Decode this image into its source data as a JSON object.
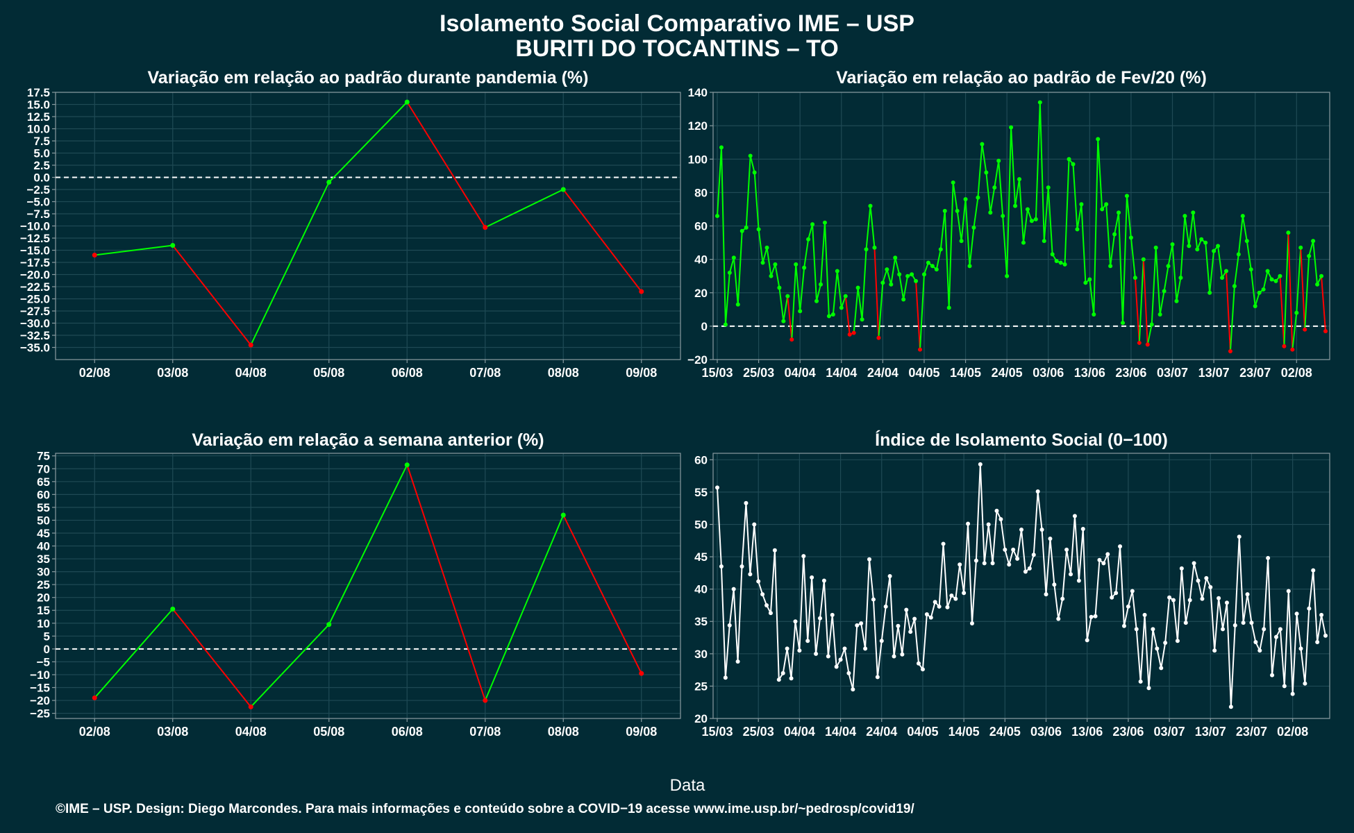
{
  "header": {
    "title1": "Isolamento Social Comparativo IME – USP",
    "title2": "BURITI DO TOCANTINS – TO"
  },
  "x_axis_caption": "Data",
  "footer": "©IME – USP. Design: Diego Marcondes. Para mais informações e conteúdo sobre a COVID−19 acesse www.ime.usp.br/~pedrosp/covid19/",
  "colors": {
    "background": "#022b35",
    "up": "#00ff00",
    "down": "#ff0000",
    "index": "#ffffff",
    "grid": "#1f4a55",
    "border": "#8a9ba0"
  },
  "chart_data": [
    {
      "id": "pandemia",
      "type": "line",
      "title": "Variação em relação ao padrão durante pandemia (%)",
      "categories": [
        "02/08",
        "03/08",
        "04/08",
        "05/08",
        "06/08",
        "07/08",
        "08/08",
        "09/08"
      ],
      "values": [
        -16.0,
        -14.0,
        -34.5,
        -1.0,
        15.5,
        -10.3,
        -2.5,
        -23.5
      ],
      "ylim": [
        -37.5,
        17.5
      ],
      "yticks": [
        17.5,
        15.0,
        12.5,
        10.0,
        7.5,
        5.0,
        2.5,
        0.0,
        -2.5,
        -5.0,
        -7.5,
        -10.0,
        -12.5,
        -15.0,
        -17.5,
        -20.0,
        -22.5,
        -25.0,
        -27.5,
        -30.0,
        -32.5,
        -35.0
      ],
      "ytick_labels": [
        "17.5",
        "15.0",
        "12.5",
        "10.0",
        "7.5",
        "5.0",
        "2.5",
        "0.0",
        "−2.5",
        "−5.0",
        "−7.5",
        "−10.0",
        "−12.5",
        "−15.0",
        "−17.5",
        "−20.0",
        "−22.5",
        "−25.0",
        "−27.5",
        "−30.0",
        "−32.5",
        "−35.0"
      ],
      "reference_line": 0,
      "grid": true
    },
    {
      "id": "fev20",
      "type": "line",
      "title": "Variação em relação ao padrão de Fev/20 (%)",
      "x_start": "15/03",
      "xtick_labels": [
        "15/03",
        "25/03",
        "04/04",
        "14/04",
        "24/04",
        "04/05",
        "14/05",
        "24/05",
        "03/06",
        "13/06",
        "23/06",
        "03/07",
        "13/07",
        "23/07",
        "02/08"
      ],
      "values": [
        66,
        107,
        1,
        32,
        41,
        13,
        57,
        59,
        102,
        92,
        58,
        38,
        47,
        30,
        37,
        23,
        3,
        18,
        -8,
        37,
        9,
        35,
        52,
        61,
        15,
        25,
        62,
        6,
        7,
        33,
        11,
        18,
        -5,
        -4,
        23,
        4,
        46,
        72,
        47,
        -7,
        26,
        34,
        25,
        41,
        31,
        16,
        30,
        31,
        27,
        -14,
        31,
        38,
        36,
        34,
        46,
        69,
        11,
        86,
        69,
        51,
        76,
        36,
        59,
        77,
        109,
        92,
        68,
        83,
        99,
        66,
        30,
        119,
        72,
        88,
        50,
        70,
        63,
        64,
        134,
        51,
        83,
        43,
        39,
        38,
        37,
        100,
        97,
        58,
        73,
        26,
        28,
        7,
        112,
        70,
        73,
        36,
        55,
        68,
        2,
        78,
        53,
        29,
        -10,
        40,
        -11,
        1,
        47,
        7,
        21,
        36,
        49,
        15,
        29,
        66,
        48,
        68,
        46,
        52,
        50,
        20,
        45,
        48,
        29,
        33,
        -15,
        24,
        43,
        66,
        51,
        34,
        12,
        20,
        22,
        33,
        28,
        27,
        30,
        -12,
        56,
        -14,
        8,
        47,
        -2,
        42,
        51,
        25,
        30,
        -3
      ],
      "ylim": [
        -20,
        140
      ],
      "yticks": [
        140,
        120,
        100,
        80,
        60,
        40,
        20,
        0,
        -20
      ],
      "ytick_labels": [
        "140",
        "120",
        "100",
        "80",
        "60",
        "40",
        "20",
        "0",
        "−20"
      ],
      "reference_line": 0,
      "grid": true
    },
    {
      "id": "semana",
      "type": "line",
      "title": "Variação em relação a semana anterior (%)",
      "categories": [
        "02/08",
        "03/08",
        "04/08",
        "05/08",
        "06/08",
        "07/08",
        "08/08",
        "09/08"
      ],
      "values": [
        -19.0,
        15.5,
        -22.5,
        9.5,
        71.5,
        -20.0,
        52.0,
        -9.5
      ],
      "ylim": [
        -27,
        76
      ],
      "yticks": [
        75,
        70,
        65,
        60,
        55,
        50,
        45,
        40,
        35,
        30,
        25,
        20,
        15,
        10,
        5,
        0,
        -5,
        -10,
        -15,
        -20,
        -25
      ],
      "ytick_labels": [
        "75",
        "70",
        "65",
        "60",
        "55",
        "50",
        "45",
        "40",
        "35",
        "30",
        "25",
        "20",
        "15",
        "10",
        "5",
        "0",
        "−5",
        "−10",
        "−15",
        "−20",
        "−25"
      ],
      "reference_line": 0,
      "grid": true
    },
    {
      "id": "indice",
      "type": "line",
      "title": "Índice de Isolamento Social (0−100)",
      "x_start": "15/03",
      "xtick_labels": [
        "15/03",
        "25/03",
        "04/04",
        "14/04",
        "24/04",
        "04/05",
        "14/05",
        "24/05",
        "03/06",
        "13/06",
        "23/06",
        "03/07",
        "13/07",
        "23/07",
        "02/08"
      ],
      "values": [
        55.7,
        43.5,
        26.3,
        34.4,
        40.0,
        28.8,
        43.5,
        53.3,
        42.3,
        50.0,
        41.2,
        39.2,
        37.5,
        36.3,
        46.0,
        26.0,
        27.0,
        30.8,
        26.2,
        35.0,
        30.5,
        45.1,
        32.0,
        41.8,
        30.0,
        35.5,
        41.3,
        29.6,
        36.0,
        28.0,
        29.1,
        30.8,
        27.0,
        24.5,
        34.4,
        34.7,
        30.8,
        44.6,
        38.4,
        26.4,
        32.0,
        37.3,
        42.0,
        29.6,
        34.3,
        29.9,
        36.8,
        33.4,
        35.4,
        28.5,
        27.6,
        36.1,
        35.6,
        38.0,
        37.3,
        47.0,
        37.2,
        39.0,
        38.5,
        43.8,
        39.4,
        50.1,
        34.7,
        44.4,
        59.3,
        44.0,
        50.0,
        44.0,
        52.1,
        50.8,
        46.1,
        43.8,
        46.1,
        44.7,
        49.2,
        42.7,
        43.2,
        45.3,
        55.1,
        49.2,
        39.2,
        47.8,
        40.7,
        35.4,
        38.5,
        46.1,
        42.3,
        51.3,
        41.3,
        49.3,
        32.1,
        35.7,
        35.8,
        44.5,
        44.0,
        45.4,
        38.7,
        39.4,
        46.6,
        34.3,
        37.3,
        39.7,
        33.8,
        25.7,
        36.0,
        24.7,
        33.8,
        30.8,
        27.8,
        31.7,
        38.7,
        38.3,
        32.0,
        43.2,
        34.8,
        38.3,
        44.0,
        41.3,
        38.5,
        41.7,
        40.3,
        30.5,
        38.6,
        33.8,
        37.9,
        21.8,
        34.4,
        48.1,
        34.8,
        39.2,
        34.8,
        31.8,
        30.5,
        33.8,
        44.8,
        26.7,
        32.6,
        33.8,
        25.0,
        39.7,
        23.8,
        36.2,
        30.8,
        25.4,
        37.0,
        42.9,
        31.8,
        36.0,
        32.8
      ],
      "ylim": [
        20,
        61
      ],
      "yticks": [
        60,
        55,
        50,
        45,
        40,
        35,
        30,
        25,
        20
      ],
      "ytick_labels": [
        "60",
        "55",
        "50",
        "45",
        "40",
        "35",
        "30",
        "25",
        "20"
      ],
      "reference_line": null,
      "grid": true
    }
  ]
}
